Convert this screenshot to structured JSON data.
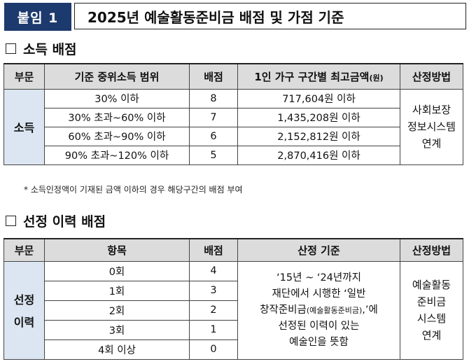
{
  "header": {
    "badge": "붙임 1",
    "title": "2025년 예술활동준비금 배점 및 가점 기준"
  },
  "section1": {
    "title": "소득 배점",
    "columns": [
      "부문",
      "기준 중위소득 범위",
      "배점",
      "1인 가구 구간별 최고금액",
      "(원)",
      "산정방법"
    ],
    "category": "소득",
    "rows": [
      {
        "range": "30% 이하",
        "score": "8",
        "amount": "717,604원 이하"
      },
      {
        "range": "30% 초과~60% 이하",
        "score": "7",
        "amount": "1,435,208원 이하"
      },
      {
        "range": "60% 초과~90% 이하",
        "score": "6",
        "amount": "2,152,812원 이하"
      },
      {
        "range": "90% 초과~120% 이하",
        "score": "5",
        "amount": "2,870,416원 이하"
      }
    ],
    "method": [
      "사회보장",
      "정보시스템",
      "연계"
    ],
    "note": "* 소득인정액이 기재된 금액 이하의 경우 해당구간의 배점 부여"
  },
  "section2": {
    "title": "선정 이력 배점",
    "columns": [
      "부문",
      "항목",
      "배점",
      "산정 기준",
      "산정방법"
    ],
    "category": [
      "선정",
      "이력"
    ],
    "rows": [
      {
        "item": "0회",
        "score": "4"
      },
      {
        "item": "1회",
        "score": "3"
      },
      {
        "item": "2회",
        "score": "2"
      },
      {
        "item": "3회",
        "score": "1"
      },
      {
        "item": "4회 이상",
        "score": "0"
      }
    ],
    "criteria": [
      "‘15년 ~ ‘24년까지",
      "재단에서 시행한 ‘일반",
      "창작준비금",
      "(예술활동준비금)",
      ",’에",
      "선정된 이력이 있는",
      "예술인을 뜻함"
    ],
    "method": [
      "예술활동",
      "준비금",
      "시스템",
      "연계"
    ]
  }
}
